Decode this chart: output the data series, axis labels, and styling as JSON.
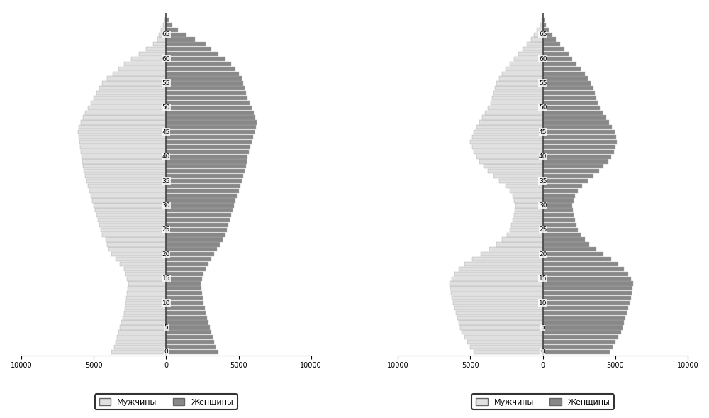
{
  "pyramid1": {
    "male": [
      3800,
      3600,
      3500,
      3400,
      3300,
      3200,
      3100,
      3000,
      2900,
      2850,
      2800,
      2750,
      2700,
      2650,
      2600,
      2700,
      2800,
      2900,
      3200,
      3500,
      3800,
      4000,
      4100,
      4200,
      4400,
      4500,
      4600,
      4700,
      4800,
      4900,
      5000,
      5100,
      5200,
      5300,
      5400,
      5500,
      5600,
      5700,
      5750,
      5800,
      5850,
      5900,
      5950,
      6000,
      6050,
      6100,
      6050,
      5900,
      5750,
      5600,
      5400,
      5200,
      5000,
      4800,
      4600,
      4400,
      4100,
      3700,
      3300,
      2900,
      2400,
      1900,
      1400,
      900,
      600,
      500,
      350,
      200,
      100
    ],
    "female": [
      3600,
      3400,
      3300,
      3200,
      3100,
      3000,
      2900,
      2800,
      2700,
      2650,
      2600,
      2550,
      2500,
      2450,
      2400,
      2500,
      2600,
      2700,
      2900,
      3100,
      3300,
      3500,
      3700,
      3900,
      4100,
      4200,
      4300,
      4400,
      4500,
      4600,
      4700,
      4800,
      4900,
      5000,
      5100,
      5200,
      5300,
      5400,
      5500,
      5550,
      5600,
      5700,
      5800,
      5900,
      6000,
      6100,
      6200,
      6250,
      6150,
      6050,
      5900,
      5750,
      5600,
      5500,
      5400,
      5300,
      5200,
      5000,
      4800,
      4500,
      4100,
      3600,
      3100,
      2700,
      2000,
      1400,
      800,
      400,
      200
    ]
  },
  "pyramid2": {
    "male": [
      4800,
      5000,
      5200,
      5400,
      5600,
      5700,
      5800,
      5900,
      6000,
      6100,
      6200,
      6300,
      6350,
      6400,
      6450,
      6300,
      6100,
      5800,
      5400,
      4900,
      4300,
      3700,
      3200,
      2800,
      2500,
      2300,
      2200,
      2100,
      2000,
      1950,
      1900,
      2000,
      2100,
      2300,
      2600,
      3000,
      3400,
      3800,
      4100,
      4400,
      4600,
      4800,
      4900,
      5000,
      4900,
      4800,
      4600,
      4400,
      4200,
      4000,
      3800,
      3600,
      3500,
      3400,
      3300,
      3200,
      3000,
      2800,
      2600,
      2300,
      2000,
      1700,
      1400,
      1100,
      800,
      600,
      400,
      200,
      100
    ],
    "female": [
      4600,
      4800,
      5000,
      5200,
      5400,
      5500,
      5600,
      5700,
      5800,
      5900,
      6000,
      6100,
      6150,
      6200,
      6250,
      6100,
      5900,
      5600,
      5200,
      4700,
      4200,
      3700,
      3200,
      2900,
      2600,
      2400,
      2300,
      2200,
      2100,
      2050,
      2000,
      2100,
      2200,
      2400,
      2700,
      3100,
      3500,
      3900,
      4200,
      4500,
      4700,
      4900,
      5000,
      5100,
      5050,
      4950,
      4750,
      4550,
      4350,
      4150,
      3950,
      3800,
      3700,
      3600,
      3500,
      3300,
      3100,
      2900,
      2600,
      2300,
      2000,
      1800,
      1500,
      1200,
      900,
      650,
      400,
      200,
      100
    ]
  },
  "ages": [
    0,
    1,
    2,
    3,
    4,
    5,
    6,
    7,
    8,
    9,
    10,
    11,
    12,
    13,
    14,
    15,
    16,
    17,
    18,
    19,
    20,
    21,
    22,
    23,
    24,
    25,
    26,
    27,
    28,
    29,
    30,
    31,
    32,
    33,
    34,
    35,
    36,
    37,
    38,
    39,
    40,
    41,
    42,
    43,
    44,
    45,
    46,
    47,
    48,
    49,
    50,
    51,
    52,
    53,
    54,
    55,
    56,
    57,
    58,
    59,
    60,
    61,
    62,
    63,
    64,
    65,
    66,
    67,
    68
  ],
  "male_color": "#e0e0e0",
  "female_color": "#888888",
  "edge_color": "#aaaaaa",
  "bar_height": 0.9,
  "xlim": 10000,
  "xtick_vals": [
    -10000,
    -5000,
    0,
    5000,
    10000
  ],
  "xtick_labels": [
    "10000",
    "5000",
    "0",
    "5000",
    "10000"
  ],
  "legend_male": "Мужчины",
  "legend_female": "Женщины",
  "background_color": "#ffffff",
  "center_line_color": "#444444",
  "age_label_ticks": [
    0,
    5,
    10,
    15,
    20,
    25,
    30,
    35,
    40,
    45,
    50,
    55,
    60,
    65
  ]
}
